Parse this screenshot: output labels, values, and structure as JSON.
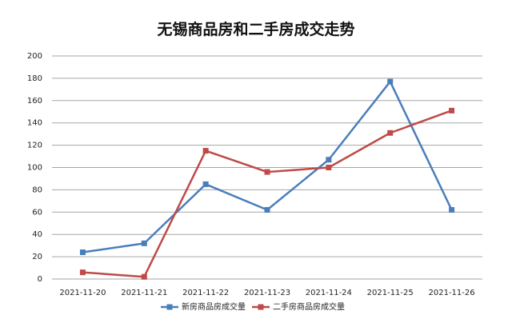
{
  "chart_data": {
    "type": "line",
    "title": "无锡商品房和二手房成交走势",
    "categories": [
      "2021-11-20",
      "2021-11-21",
      "2021-11-22",
      "2021-11-23",
      "2021-11-24",
      "2021-11-25",
      "2021-11-26"
    ],
    "series": [
      {
        "name": "新房商品房成交量",
        "color": "#4a7ebb",
        "values": [
          24,
          32,
          85,
          62,
          107,
          177,
          62
        ]
      },
      {
        "name": "二手房商品房成交量",
        "color": "#be4b48",
        "values": [
          6,
          2,
          115,
          96,
          100,
          131,
          151
        ]
      }
    ],
    "ylim": [
      0,
      200
    ],
    "yticks": [
      0,
      20,
      40,
      60,
      80,
      100,
      120,
      140,
      160,
      180,
      200
    ],
    "grid": true,
    "legend": "bottom"
  }
}
